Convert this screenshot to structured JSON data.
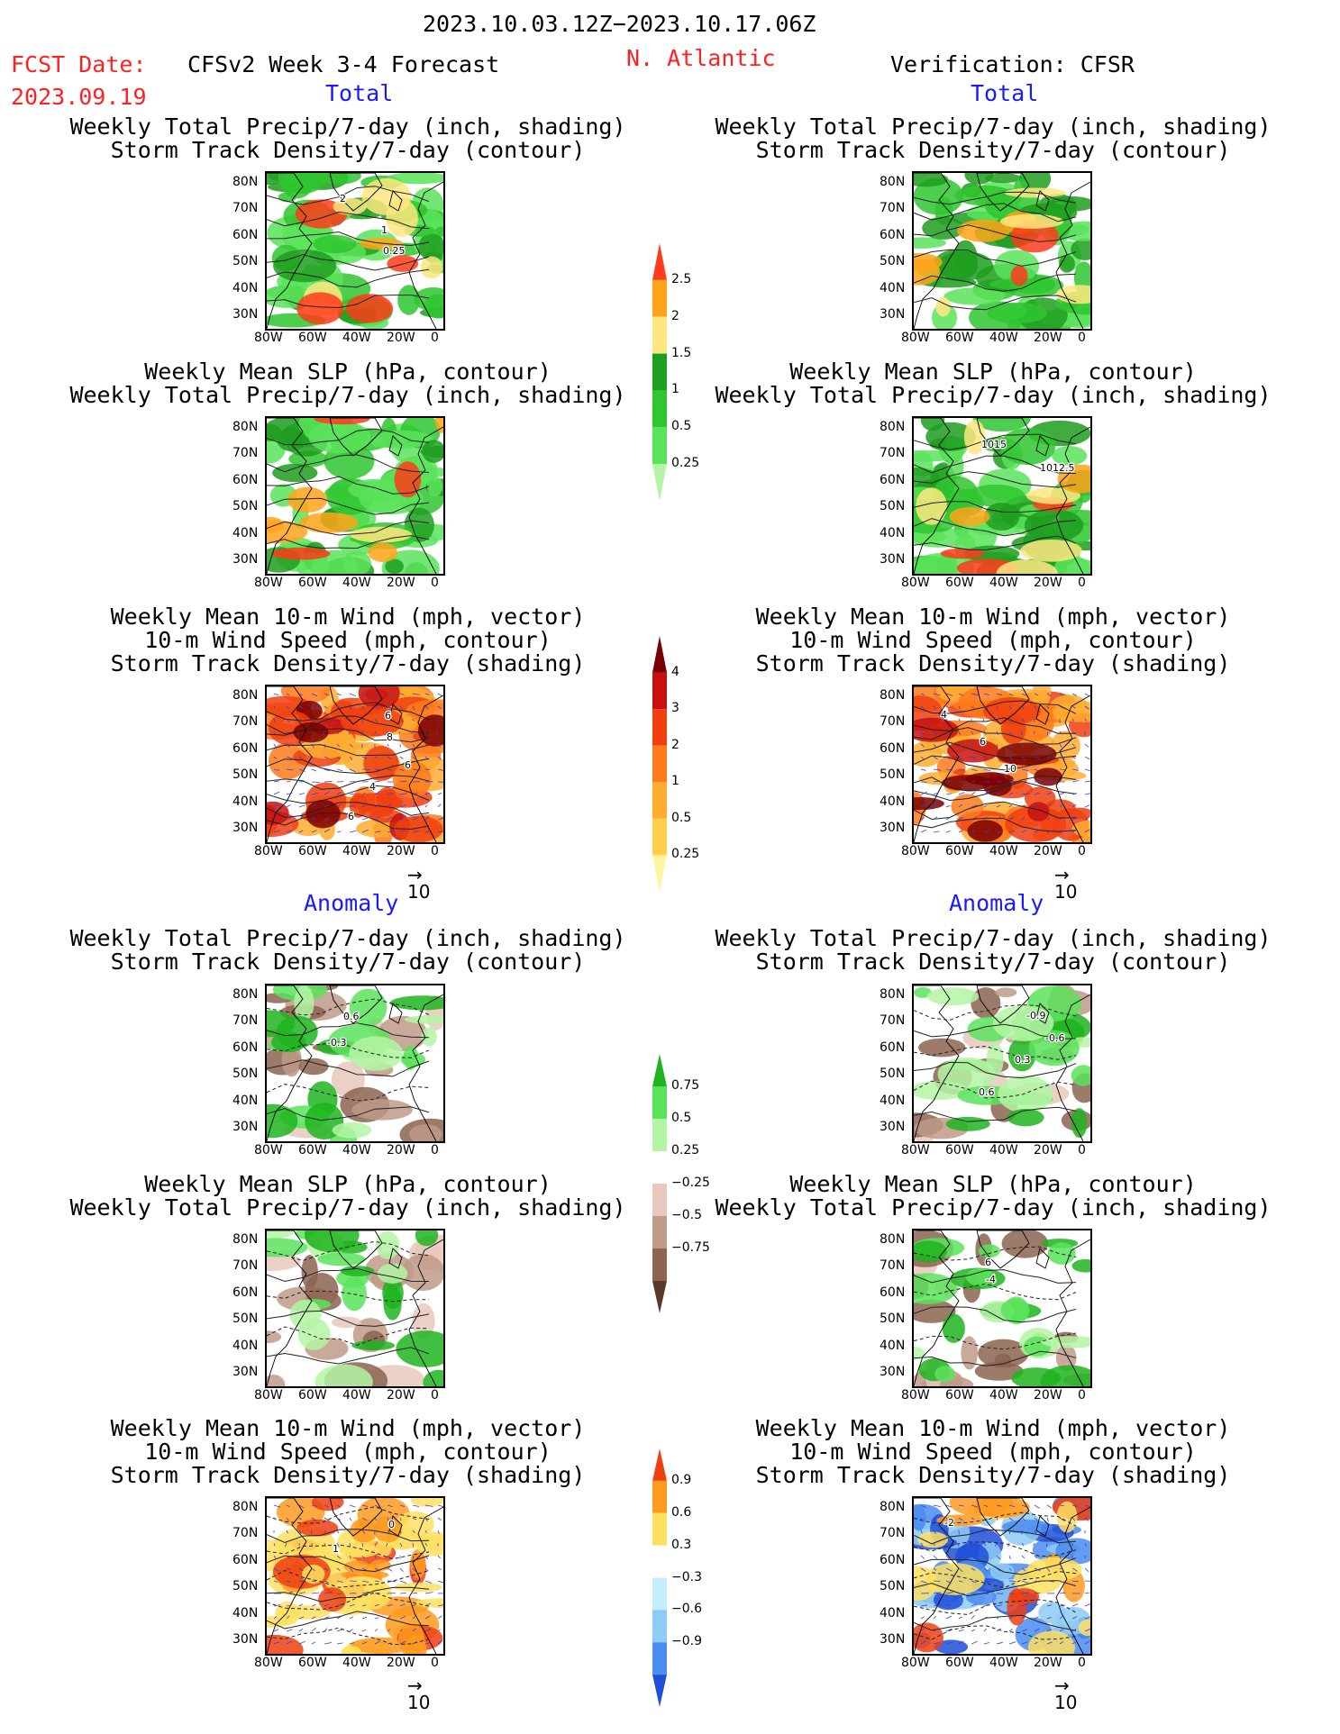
{
  "header": {
    "date_range": "2023.10.03.12Z−2023.10.17.06Z",
    "fcst_date_label": "FCST Date:",
    "fcst_date_value": "2023.09.19",
    "model_title": "CFSv2 Week 3-4 Forecast",
    "region": "N. Atlantic",
    "verification": "Verification: CFSR"
  },
  "sections": {
    "total_left": "Total",
    "total_right": "Total",
    "anomaly_left": "Anomaly",
    "anomaly_right": "Anomaly"
  },
  "titles": {
    "precip_track": [
      "Weekly Total Precip/7-day (inch, shading)",
      "Storm Track Density/7-day (contour)"
    ],
    "slp_precip": [
      "Weekly Mean SLP (hPa, contour)",
      "Weekly Total Precip/7-day (inch, shading)"
    ],
    "wind_track": [
      "Weekly Mean 10-m Wind (mph, vector)",
      "10-m Wind Speed (mph, contour)",
      "Storm Track Density/7-day (shading)"
    ]
  },
  "axes": {
    "lat_ticks": [
      "80N",
      "70N",
      "60N",
      "50N",
      "40N",
      "30N"
    ],
    "lon_ticks": [
      "80W",
      "60W",
      "40W",
      "20W",
      "0"
    ]
  },
  "vector_reference": "10",
  "chart_data": [
    {
      "type": "heatmap",
      "title": "Weekly Total Precip/7-day (inch, shading)",
      "colorbar": {
        "levels": [
          0.25,
          0.5,
          1,
          1.5,
          2,
          2.5
        ],
        "labels": [
          "0.25",
          "0.5",
          "1",
          "1.5",
          "2",
          "2.5"
        ],
        "colors": [
          "#b4f5a5",
          "#5ae35a",
          "#2fc62f",
          "#1e9e1e",
          "#ffe680",
          "#ffa31a",
          "#ff3b1a"
        ]
      },
      "contour_labels_forecast_total": [
        "2",
        "1",
        "0.25"
      ],
      "contour_labels_verification_total_slp": [
        "1015",
        "1012.5"
      ]
    },
    {
      "type": "heatmap",
      "title": "Storm Track Density/7-day (shading)",
      "colorbar": {
        "levels": [
          0.25,
          0.5,
          1,
          2,
          3,
          4
        ],
        "labels": [
          "0.25",
          "0.5",
          "1",
          "2",
          "3",
          "4"
        ],
        "colors": [
          "#fff5a0",
          "#ffd050",
          "#ffad30",
          "#ff7a1a",
          "#f04010",
          "#c81010",
          "#7a0000"
        ]
      },
      "contour_labels_forecast_total": [
        "6",
        "8",
        "6",
        "4",
        "6"
      ],
      "contour_labels_verification_total": [
        "4",
        "6",
        "10"
      ]
    },
    {
      "type": "heatmap",
      "title": "Weekly Total Precip/7-day anomaly (inch, shading)",
      "colorbar": {
        "levels": [
          -0.75,
          -0.5,
          -0.25,
          0.25,
          0.5,
          0.75
        ],
        "labels": [
          "−0.75",
          "−0.5",
          "−0.25",
          "0.25",
          "0.5",
          "0.75"
        ],
        "colors": [
          "#5a3a2a",
          "#8c6450",
          "#bf9a88",
          "#e8c8bc",
          "#ffffff",
          "#b4f5a5",
          "#5ae35a",
          "#1fb41f"
        ]
      },
      "contour_labels_forecast_anomaly": [
        "0.6",
        "-0.3"
      ],
      "contour_labels_verification_anomaly": [
        "-0.9",
        "-0.6",
        "0.3",
        "0.6"
      ],
      "contour_labels_verification_slp_anomaly": [
        "6",
        "-4"
      ]
    },
    {
      "type": "heatmap",
      "title": "Storm Track Density/7-day anomaly (shading)",
      "colorbar": {
        "levels": [
          -0.9,
          -0.6,
          -0.3,
          0.3,
          0.6,
          0.9
        ],
        "labels": [
          "−0.9",
          "−0.6",
          "−0.3",
          "0.3",
          "0.6",
          "0.9"
        ],
        "colors": [
          "#1f4fd8",
          "#4a8cf0",
          "#8ecbf5",
          "#c4ecfa",
          "#ffffff",
          "#ffe060",
          "#ff9a20",
          "#f04010"
        ]
      },
      "contour_labels_forecast_anomaly": [
        "0",
        "1"
      ],
      "contour_labels_verification_anomaly": [
        "-2"
      ]
    }
  ]
}
